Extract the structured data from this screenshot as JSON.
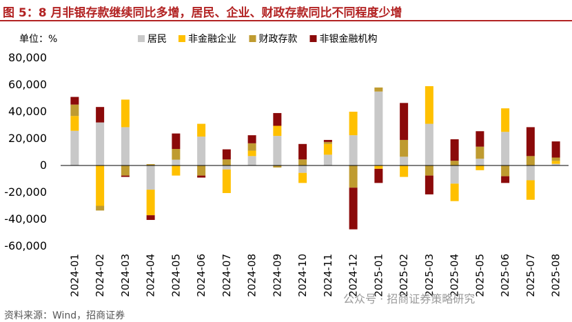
{
  "title": "图 5：8 月非银存款继续同比多增，居民、企业、财政存款同比不同程度少增",
  "unit_label": "单位：%",
  "footer": "资料来源：Wind，招商证券",
  "watermark": "公众号 · 招商证券策略研究",
  "colors": {
    "title": "#b22222",
    "resident": "#c8c8c8",
    "enterprise": "#ffc000",
    "fiscal": "#bf9b30",
    "nonbank": "#8b0a0a"
  },
  "chart_data": {
    "type": "bar",
    "stacked": true,
    "ylim": [
      -60000,
      80000
    ],
    "yticks": [
      -60000,
      -40000,
      -20000,
      0,
      20000,
      40000,
      60000,
      80000
    ],
    "ytick_labels": [
      "-60,000",
      "-40,000",
      "-20,000",
      "0",
      "20,000",
      "40,000",
      "60,000",
      "80,000"
    ],
    "legend_position": "top",
    "categories": [
      "2024-01",
      "2024-02",
      "2024-03",
      "2024-04",
      "2024-05",
      "2024-06",
      "2024-07",
      "2024-08",
      "2024-09",
      "2024-10",
      "2024-11",
      "2024-12",
      "2025-01",
      "2025-02",
      "2025-03",
      "2025-04",
      "2025-05",
      "2025-06",
      "2025-07",
      "2025-08"
    ],
    "series": [
      {
        "name": "居民",
        "color_key": "resident",
        "values": [
          25800,
          32000,
          28500,
          -18000,
          4300,
          21500,
          -3000,
          7000,
          22000,
          -5500,
          8000,
          22500,
          55000,
          6500,
          31000,
          -13500,
          5000,
          25000,
          -11000,
          1200
        ]
      },
      {
        "name": "非金融企业",
        "color_key": "enterprise",
        "values": [
          11000,
          -30000,
          20500,
          -19000,
          -7500,
          9500,
          -17500,
          4000,
          7500,
          -7500,
          8000,
          17500,
          -2500,
          -8500,
          28000,
          -13000,
          -3500,
          17500,
          -14500,
          2200
        ]
      },
      {
        "name": "财政存款",
        "color_key": "fiscal",
        "values": [
          8500,
          -3500,
          -7500,
          1000,
          8000,
          -7500,
          4500,
          5500,
          -1500,
          4500,
          1500,
          -16500,
          3000,
          12500,
          -7500,
          3500,
          9000,
          -8000,
          7000,
          2500
        ]
      },
      {
        "name": "非银金融机构",
        "color_key": "nonbank",
        "values": [
          5700,
          11500,
          -1000,
          -3500,
          11500,
          -1500,
          7500,
          6000,
          9500,
          11500,
          1500,
          -31000,
          -10500,
          27500,
          -14000,
          16000,
          11500,
          -5000,
          21500,
          12000
        ]
      }
    ]
  }
}
